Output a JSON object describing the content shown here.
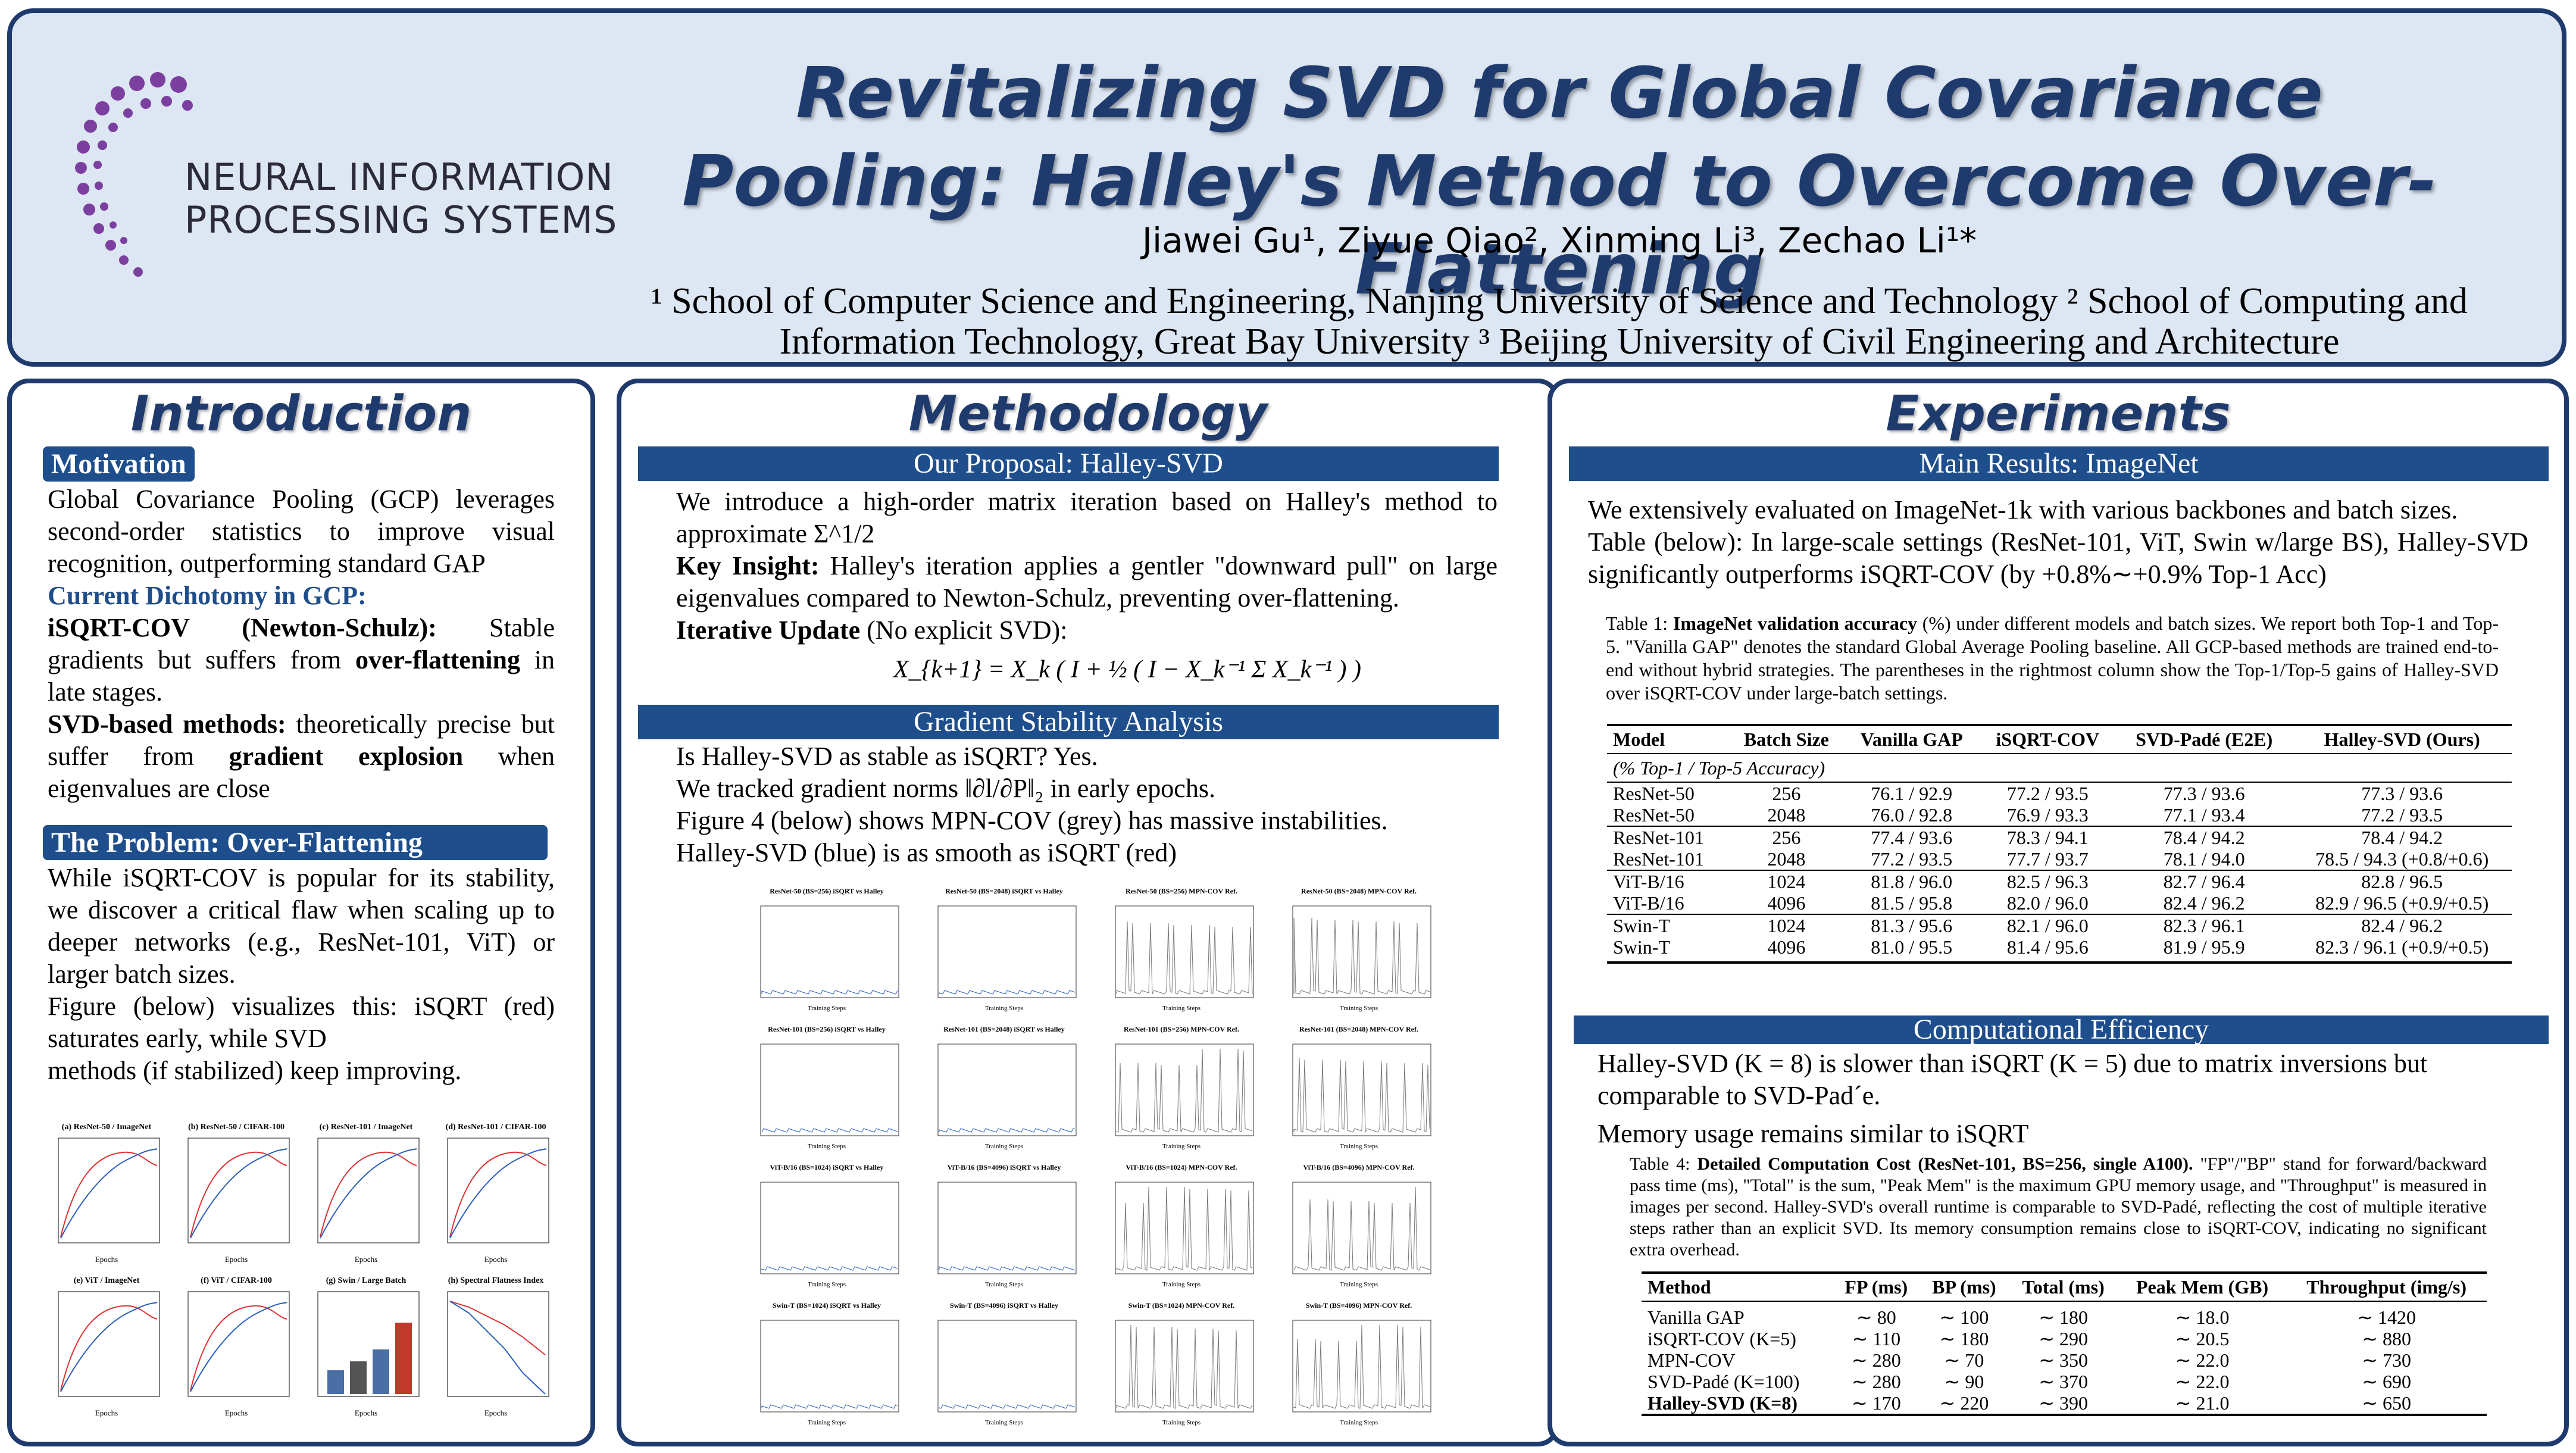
{
  "header": {
    "title": "Revitalizing SVD for Global Covariance Pooling: Halley's Method to Overcome Over-Flattening",
    "authors": "Jiawei Gu¹, Ziyue Qiao², Xinming Li³, Zechao Li¹*",
    "affiliations": "¹ School of Computer Science and Engineering, Nanjing University of Science and Technology ² School of Computing and Information Technology, Great Bay University ³ Beijing University of Civil Engineering and Architecture",
    "logo_line1": "NEURAL INFORMATION",
    "logo_line2": "PROCESSING SYSTEMS"
  },
  "intro": {
    "title": "Introduction",
    "motivation_tag": "Motivation",
    "motivation_text": "Global Covariance Pooling (GCP) leverages second-order statistics to improve visual recognition, outperforming standard GAP",
    "dichotomy_heading": "Current Dichotomy in GCP:",
    "isqrt_label": "iSQRT-COV (Newton-Schulz):",
    "isqrt_text": " Stable gradients but suffers from ",
    "isqrt_bold": "over-flattening",
    "isqrt_end": " in late stages.",
    "svd_label": "SVD-based methods:",
    "svd_text": " theoretically precise but suffer from ",
    "svd_bold": "gradient explosion",
    "svd_end": " when eigenvalues are close",
    "problem_tag": "The Problem: Over-Flattening",
    "problem_text": "While iSQRT-COV is popular for its stability, we discover a critical flaw when scaling up to deeper networks (e.g., ResNet-101, ViT) or larger batch sizes.",
    "figure_text": "Figure (below) visualizes this: iSQRT (red) saturates early, while SVD",
    "figure_text2": "methods (if stabilized) keep improving.",
    "plots": [
      "(a) ResNet-50 / ImageNet",
      "(b) ResNet-50 / CIFAR-100",
      "(c) ResNet-101 / ImageNet",
      "(d) ResNet-101 / CIFAR-100",
      "(e) ViT / ImageNet",
      "(f) ViT / CIFAR-100",
      "(g) Swin / Large Batch",
      "(h) Spectral Flatness Index"
    ],
    "plot_xlabel": "Epochs"
  },
  "method": {
    "title": "Methodology",
    "proposal_bar": "Our Proposal: Halley-SVD",
    "proposal_text": "We introduce a high-order matrix iteration based on Halley's method to approximate Σ^1/2",
    "insight_label": "Key Insight:",
    "insight_text": " Halley's iteration applies a gentler \"downward pull\" on large eigenvalues compared to Newton-Schulz, preventing over-flattening.",
    "update_label": "Iterative Update",
    "update_text": " (No explicit SVD):",
    "equation": "X_{k+1} = X_k ( I + ½ ( I − X_k⁻¹ Σ X_k⁻¹ ) )",
    "gradient_bar": "Gradient Stability Analysis",
    "gradient_q": "Is Halley-SVD as stable as iSQRT? Yes.",
    "gradient_t1": "We tracked gradient norms ‖∂l/∂P‖₂ in early epochs.",
    "gradient_t2": "Figure 4 (below) shows MPN-COV (grey) has massive instabilities.",
    "gradient_t3": "Halley-SVD (blue) is as smooth as iSQRT (red)",
    "grad_plots": [
      "ResNet-50 (BS=256) iSQRT vs Halley",
      "ResNet-50 (BS=2048) iSQRT vs Halley",
      "ResNet-50 (BS=256) MPN-COV Ref.",
      "ResNet-50 (BS=2048) MPN-COV Ref.",
      "ResNet-101 (BS=256) iSQRT vs Halley",
      "ResNet-101 (BS=2048) iSQRT vs Halley",
      "ResNet-101 (BS=256) MPN-COV Ref.",
      "ResNet-101 (BS=2048) MPN-COV Ref.",
      "ViT-B/16 (BS=1024) iSQRT vs Halley",
      "ViT-B/16 (BS=4096) iSQRT vs Halley",
      "ViT-B/16 (BS=1024) MPN-COV Ref.",
      "ViT-B/16 (BS=4096) MPN-COV Ref.",
      "Swin-T (BS=1024) iSQRT vs Halley",
      "Swin-T (BS=4096) iSQRT vs Halley",
      "Swin-T (BS=1024) MPN-COV Ref.",
      "Swin-T (BS=4096) MPN-COV Ref."
    ],
    "grad_xlabel": "Training Steps"
  },
  "exp": {
    "title": "Experiments",
    "main_bar": "Main Results: ImageNet",
    "main_text1": "We extensively evaluated on ImageNet-1k with various backbones and batch sizes.",
    "main_text2": "Table (below): In large-scale settings (ResNet-101, ViT, Swin w/large BS), Halley-SVD significantly outperforms iSQRT-COV (by +0.8%∼+0.9% Top-1 Acc)",
    "table1_caption_prefix": "Table 1: ",
    "table1_caption_bold": "ImageNet validation accuracy",
    "table1_caption": " (%) under different models and batch sizes. We report both Top-1 and Top-5. \"Vanilla GAP\" denotes the standard Global Average Pooling baseline. All GCP-based methods are trained end-to-end without hybrid strategies. The parentheses in the rightmost column show the Top-1/Top-5 gains of Halley-SVD over iSQRT-COV under large-batch settings.",
    "table1_headers": [
      "Model",
      "Batch Size",
      "Vanilla GAP",
      "iSQRT-COV",
      "SVD-Padé (E2E)",
      "Halley-SVD (Ours)"
    ],
    "table1_subhead": "(% Top-1 / Top-5 Accuracy)",
    "table1_rows": [
      [
        "ResNet-50",
        "256",
        "76.1 / 92.9",
        "77.2 / 93.5",
        "77.3 / 93.6",
        "77.3 / 93.6"
      ],
      [
        "ResNet-50",
        "2048",
        "76.0 / 92.8",
        "76.9 / 93.3",
        "77.1 / 93.4",
        "77.2 / 93.5"
      ],
      [
        "ResNet-101",
        "256",
        "77.4 / 93.6",
        "78.3 / 94.1",
        "78.4 / 94.2",
        "78.4 / 94.2"
      ],
      [
        "ResNet-101",
        "2048",
        "77.2 / 93.5",
        "77.7 / 93.7",
        "78.1 / 94.0",
        "78.5 / 94.3  (+0.8/+0.6)"
      ],
      [
        "ViT-B/16",
        "1024",
        "81.8 / 96.0",
        "82.5 / 96.3",
        "82.7 / 96.4",
        "82.8 / 96.5"
      ],
      [
        "ViT-B/16",
        "4096",
        "81.5 / 95.8",
        "82.0 / 96.0",
        "82.4 / 96.2",
        "82.9 / 96.5  (+0.9/+0.5)"
      ],
      [
        "Swin-T",
        "1024",
        "81.3 / 95.6",
        "82.1 / 96.0",
        "82.3 / 96.1",
        "82.4 / 96.2"
      ],
      [
        "Swin-T",
        "4096",
        "81.0 / 95.5",
        "81.4 / 95.6",
        "81.9 / 95.9",
        "82.3 / 96.1  (+0.9/+0.5)"
      ]
    ],
    "eff_bar": "Computational Efficiency",
    "eff_text1": "Halley-SVD (K = 8) is slower than iSQRT (K = 5) due to matrix inversions but comparable to SVD-Pad´e.",
    "eff_text2": "Memory usage remains similar to iSQRT",
    "table4_caption_prefix": "Table 4: ",
    "table4_caption_bold": "Detailed Computation Cost (ResNet-101, BS=256, single A100).",
    "table4_caption": " \"FP\"/\"BP\" stand for forward/backward pass time (ms), \"Total\" is the sum, \"Peak Mem\" is the maximum GPU memory usage, and \"Throughput\" is measured in images per second. Halley-SVD's overall runtime is comparable to SVD-Padé, reflecting the cost of multiple iterative steps rather than an explicit SVD. Its memory consumption remains close to iSQRT-COV, indicating no significant extra overhead.",
    "table4_headers": [
      "Method",
      "FP (ms)",
      "BP (ms)",
      "Total (ms)",
      "Peak Mem (GB)",
      "Throughput (img/s)"
    ],
    "table4_rows": [
      [
        "Vanilla GAP",
        "∼ 80",
        "∼ 100",
        "∼ 180",
        "∼ 18.0",
        "∼ 1420"
      ],
      [
        "iSQRT-COV (K=5)",
        "∼ 110",
        "∼ 180",
        "∼ 290",
        "∼ 20.5",
        "∼ 880"
      ],
      [
        "MPN-COV",
        "∼ 280",
        "∼ 70",
        "∼ 350",
        "∼ 22.0",
        "∼ 730"
      ],
      [
        "SVD-Padé (K=100)",
        "∼ 280",
        "∼ 90",
        "∼ 370",
        "∼ 22.0",
        "∼ 690"
      ],
      [
        "Halley-SVD (K=8)",
        "∼ 170",
        "∼ 220",
        "∼ 390",
        "∼ 21.0",
        "∼ 650"
      ]
    ]
  }
}
